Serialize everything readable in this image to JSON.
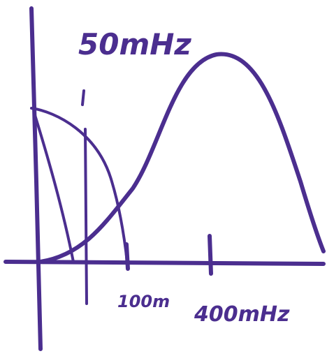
{
  "labels": [
    "50mHz",
    "100m",
    "400mHz"
  ]
}
